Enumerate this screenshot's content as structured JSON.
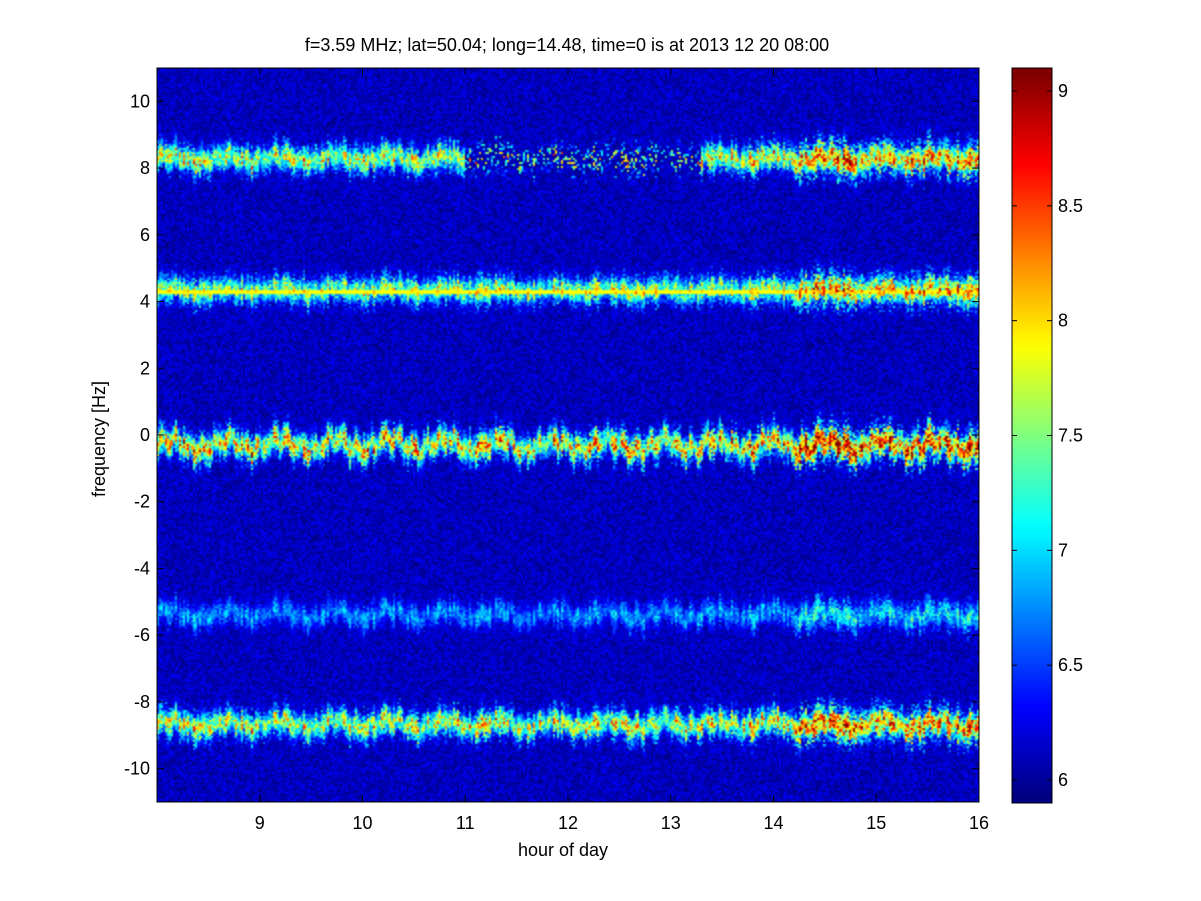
{
  "chart_data": {
    "type": "heatmap",
    "title": "f=3.59 MHz;  lat=50.04; long=14.48, time=0 is at 2013 12 20 08:00",
    "xlabel": "hour of day",
    "ylabel": "frequency [Hz]",
    "xlim": [
      8,
      16
    ],
    "ylim": [
      -11,
      11
    ],
    "x_ticks": [
      9,
      10,
      11,
      12,
      13,
      14,
      15,
      16
    ],
    "x_tick_labels": [
      "9",
      "10",
      "11",
      "12",
      "13",
      "14",
      "15",
      "16"
    ],
    "y_ticks": [
      -10,
      -8,
      -6,
      -4,
      -2,
      0,
      2,
      4,
      6,
      8,
      10
    ],
    "y_tick_labels": [
      "-10",
      "-8",
      "-6",
      "-4",
      "-2",
      "0",
      "2",
      "4",
      "6",
      "8",
      "10"
    ],
    "colorbar": {
      "range": [
        5.9,
        9.1
      ],
      "ticks": [
        6,
        6.5,
        7,
        7.5,
        8,
        8.5,
        9
      ],
      "tick_labels": [
        "6",
        "6.5",
        "7",
        "7.5",
        "8",
        "8.5",
        "9"
      ],
      "colormap": "jet"
    },
    "background_value": 5.9,
    "bands": [
      {
        "center_hz": 8.3,
        "strength": 0.78,
        "wobble": 0.12,
        "gap_hours": [
          [
            11.0,
            13.3
          ]
        ]
      },
      {
        "center_hz": 4.35,
        "strength": 0.72,
        "wobble": 0.08
      },
      {
        "center_hz": -0.3,
        "strength": 0.9,
        "wobble": 0.2
      },
      {
        "center_hz": -5.4,
        "strength": 0.38,
        "wobble": 0.15
      },
      {
        "center_hz": -8.7,
        "strength": 0.8,
        "wobble": 0.14
      }
    ],
    "constant_line_hz": 4.3,
    "grid": false,
    "legend": "none"
  },
  "colors": {
    "jet_low": "#00008f",
    "jet_high": "#800000",
    "axis": "#000000"
  }
}
